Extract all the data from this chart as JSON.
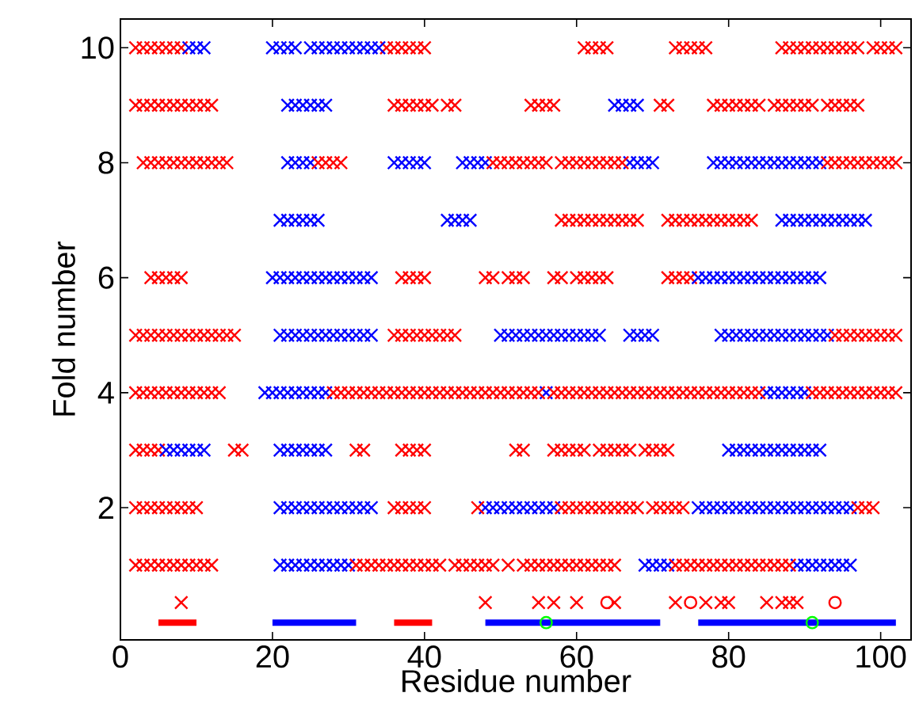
{
  "chart_data": {
    "type": "scatter",
    "xlabel": "Residue number",
    "ylabel": "Fold number",
    "xlim": [
      0,
      104
    ],
    "ylim": [
      -0.3,
      10.5
    ],
    "xticks": [
      0,
      20,
      40,
      60,
      80,
      100
    ],
    "yticks": [
      2,
      4,
      6,
      8,
      10
    ],
    "marker": "cross",
    "series": [
      {
        "color": "#ff0000",
        "x": [
          2,
          3,
          4,
          5,
          6,
          7,
          8,
          35,
          36,
          37,
          38,
          39,
          40,
          61,
          62,
          63,
          64,
          73,
          74,
          75,
          76,
          77,
          87,
          88,
          89,
          90,
          91,
          92,
          93,
          94,
          95,
          96,
          97,
          99,
          100,
          101,
          102
        ],
        "values": [
          10,
          10,
          10,
          10,
          10,
          10,
          10,
          10,
          10,
          10,
          10,
          10,
          10,
          10,
          10,
          10,
          10,
          10,
          10,
          10,
          10,
          10,
          10,
          10,
          10,
          10,
          10,
          10,
          10,
          10,
          10,
          10,
          10,
          10,
          10,
          10,
          10
        ]
      },
      {
        "color": "#0000ff",
        "x": [
          9,
          10,
          11,
          20,
          21,
          22,
          23,
          25,
          26,
          27,
          28,
          29,
          30,
          31,
          32,
          33,
          34
        ],
        "values": [
          10,
          10,
          10,
          10,
          10,
          10,
          10,
          10,
          10,
          10,
          10,
          10,
          10,
          10,
          10,
          10,
          10
        ]
      },
      {
        "color": "#ff0000",
        "x": [
          2,
          3,
          4,
          5,
          6,
          7,
          8,
          9,
          10,
          11,
          12,
          36,
          37,
          38,
          39,
          40,
          41,
          43,
          44,
          54,
          55,
          56,
          57,
          71,
          72,
          78,
          79,
          80,
          81,
          82,
          83,
          84,
          86,
          87,
          88,
          89,
          90,
          91,
          93,
          94,
          95,
          96,
          97
        ],
        "values": [
          9,
          9,
          9,
          9,
          9,
          9,
          9,
          9,
          9,
          9,
          9,
          9,
          9,
          9,
          9,
          9,
          9,
          9,
          9,
          9,
          9,
          9,
          9,
          9,
          9,
          9,
          9,
          9,
          9,
          9,
          9,
          9,
          9,
          9,
          9,
          9,
          9,
          9,
          9,
          9,
          9,
          9,
          9
        ]
      },
      {
        "color": "#0000ff",
        "x": [
          22,
          23,
          24,
          25,
          26,
          27,
          65,
          66,
          67,
          68
        ],
        "values": [
          9,
          9,
          9,
          9,
          9,
          9,
          9,
          9,
          9,
          9
        ]
      },
      {
        "color": "#0000ff",
        "x": [
          22,
          23,
          24,
          25,
          36,
          37,
          38,
          39,
          40,
          45,
          46,
          47,
          48,
          67,
          68,
          69,
          70,
          78,
          79,
          80,
          81,
          82,
          83,
          84,
          85,
          86,
          87,
          88,
          89,
          90,
          91,
          92
        ],
        "values": [
          8,
          8,
          8,
          8,
          8,
          8,
          8,
          8,
          8,
          8,
          8,
          8,
          8,
          8,
          8,
          8,
          8,
          8,
          8,
          8,
          8,
          8,
          8,
          8,
          8,
          8,
          8,
          8,
          8,
          8,
          8,
          8
        ]
      },
      {
        "color": "#ff0000",
        "x": [
          3,
          4,
          5,
          6,
          7,
          8,
          9,
          10,
          11,
          12,
          13,
          14,
          26,
          27,
          28,
          29,
          49,
          50,
          51,
          52,
          53,
          54,
          55,
          56,
          58,
          59,
          60,
          61,
          62,
          63,
          64,
          65,
          66,
          93,
          94,
          95,
          96,
          97,
          98,
          99,
          100,
          101,
          102
        ],
        "values": [
          8,
          8,
          8,
          8,
          8,
          8,
          8,
          8,
          8,
          8,
          8,
          8,
          8,
          8,
          8,
          8,
          8,
          8,
          8,
          8,
          8,
          8,
          8,
          8,
          8,
          8,
          8,
          8,
          8,
          8,
          8,
          8,
          8,
          8,
          8,
          8,
          8,
          8,
          8,
          8,
          8,
          8,
          8
        ]
      },
      {
        "color": "#ff0000",
        "x": [
          58,
          59,
          60,
          61,
          62,
          63,
          64,
          65,
          66,
          67,
          68,
          72,
          73,
          74,
          75,
          76,
          77,
          78,
          79,
          80,
          81,
          82,
          83
        ],
        "values": [
          7,
          7,
          7,
          7,
          7,
          7,
          7,
          7,
          7,
          7,
          7,
          7,
          7,
          7,
          7,
          7,
          7,
          7,
          7,
          7,
          7,
          7,
          7
        ]
      },
      {
        "color": "#0000ff",
        "x": [
          21,
          22,
          23,
          24,
          25,
          26,
          43,
          44,
          45,
          46,
          87,
          88,
          89,
          90,
          91,
          92,
          93,
          94,
          95,
          96,
          97,
          98
        ],
        "values": [
          7,
          7,
          7,
          7,
          7,
          7,
          7,
          7,
          7,
          7,
          7,
          7,
          7,
          7,
          7,
          7,
          7,
          7,
          7,
          7,
          7,
          7
        ]
      },
      {
        "color": "#ff0000",
        "x": [
          4,
          5,
          6,
          7,
          8,
          37,
          38,
          39,
          40,
          48,
          49,
          51,
          52,
          53,
          57,
          58,
          60,
          61,
          62,
          63,
          64,
          72,
          73,
          74,
          75
        ],
        "values": [
          6,
          6,
          6,
          6,
          6,
          6,
          6,
          6,
          6,
          6,
          6,
          6,
          6,
          6,
          6,
          6,
          6,
          6,
          6,
          6,
          6,
          6,
          6,
          6,
          6
        ]
      },
      {
        "color": "#0000ff",
        "x": [
          20,
          21,
          22,
          23,
          24,
          25,
          26,
          27,
          28,
          29,
          30,
          31,
          32,
          33,
          76,
          77,
          78,
          79,
          80,
          81,
          82,
          83,
          84,
          85,
          86,
          87,
          88,
          89,
          90,
          91,
          92
        ],
        "values": [
          6,
          6,
          6,
          6,
          6,
          6,
          6,
          6,
          6,
          6,
          6,
          6,
          6,
          6,
          6,
          6,
          6,
          6,
          6,
          6,
          6,
          6,
          6,
          6,
          6,
          6,
          6,
          6,
          6,
          6,
          6
        ]
      },
      {
        "color": "#0000ff",
        "x": [
          21,
          22,
          23,
          24,
          25,
          26,
          27,
          28,
          29,
          30,
          31,
          32,
          33,
          50,
          51,
          52,
          53,
          54,
          55,
          56,
          57,
          58,
          59,
          60,
          61,
          62,
          63,
          67,
          68,
          69,
          70,
          79,
          80,
          81,
          82,
          83,
          84,
          85,
          86,
          87,
          88,
          89,
          90,
          91,
          92,
          93
        ],
        "values": [
          5,
          5,
          5,
          5,
          5,
          5,
          5,
          5,
          5,
          5,
          5,
          5,
          5,
          5,
          5,
          5,
          5,
          5,
          5,
          5,
          5,
          5,
          5,
          5,
          5,
          5,
          5,
          5,
          5,
          5,
          5,
          5,
          5,
          5,
          5,
          5,
          5,
          5,
          5,
          5,
          5,
          5,
          5,
          5,
          5,
          5
        ]
      },
      {
        "color": "#ff0000",
        "x": [
          2,
          3,
          4,
          5,
          6,
          7,
          8,
          9,
          10,
          11,
          12,
          13,
          14,
          15,
          36,
          37,
          38,
          39,
          40,
          41,
          42,
          43,
          44,
          94,
          95,
          96,
          97,
          98,
          99,
          100,
          101,
          102
        ],
        "values": [
          5,
          5,
          5,
          5,
          5,
          5,
          5,
          5,
          5,
          5,
          5,
          5,
          5,
          5,
          5,
          5,
          5,
          5,
          5,
          5,
          5,
          5,
          5,
          5,
          5,
          5,
          5,
          5,
          5,
          5,
          5,
          5
        ]
      },
      {
        "color": "#0000ff",
        "x": [
          19,
          20,
          21,
          22,
          23,
          24,
          25,
          26,
          27,
          56,
          85,
          86,
          87,
          88,
          89,
          90
        ],
        "values": [
          4,
          4,
          4,
          4,
          4,
          4,
          4,
          4,
          4,
          4,
          4,
          4,
          4,
          4,
          4,
          4
        ]
      },
      {
        "color": "#ff0000",
        "x": [
          2,
          3,
          4,
          5,
          6,
          7,
          8,
          9,
          10,
          11,
          12,
          13,
          28,
          29,
          30,
          31,
          32,
          33,
          34,
          35,
          36,
          37,
          38,
          39,
          40,
          41,
          42,
          43,
          44,
          45,
          46,
          47,
          48,
          49,
          50,
          51,
          52,
          53,
          54,
          55,
          57,
          58,
          59,
          60,
          61,
          62,
          63,
          64,
          65,
          66,
          67,
          68,
          69,
          70,
          71,
          72,
          73,
          74,
          75,
          76,
          77,
          78,
          79,
          80,
          81,
          82,
          83,
          84,
          91,
          92,
          93,
          94,
          95,
          96,
          97,
          98,
          99,
          100,
          101,
          102
        ],
        "values": [
          4,
          4,
          4,
          4,
          4,
          4,
          4,
          4,
          4,
          4,
          4,
          4,
          4,
          4,
          4,
          4,
          4,
          4,
          4,
          4,
          4,
          4,
          4,
          4,
          4,
          4,
          4,
          4,
          4,
          4,
          4,
          4,
          4,
          4,
          4,
          4,
          4,
          4,
          4,
          4,
          4,
          4,
          4,
          4,
          4,
          4,
          4,
          4,
          4,
          4,
          4,
          4,
          4,
          4,
          4,
          4,
          4,
          4,
          4,
          4,
          4,
          4,
          4,
          4,
          4,
          4,
          4,
          4,
          4,
          4,
          4,
          4,
          4,
          4,
          4,
          4,
          4,
          4,
          4,
          4
        ]
      },
      {
        "color": "#ff0000",
        "x": [
          2,
          3,
          4,
          5,
          15,
          16,
          31,
          32,
          37,
          38,
          39,
          40,
          52,
          53,
          57,
          58,
          59,
          60,
          61,
          63,
          64,
          65,
          66,
          67,
          69,
          70,
          71,
          72
        ],
        "values": [
          3,
          3,
          3,
          3,
          3,
          3,
          3,
          3,
          3,
          3,
          3,
          3,
          3,
          3,
          3,
          3,
          3,
          3,
          3,
          3,
          3,
          3,
          3,
          3,
          3,
          3,
          3,
          3
        ]
      },
      {
        "color": "#0000ff",
        "x": [
          6,
          7,
          8,
          9,
          10,
          11,
          21,
          22,
          23,
          24,
          25,
          26,
          27,
          80,
          81,
          82,
          83,
          84,
          85,
          86,
          87,
          88,
          89,
          90,
          91,
          92
        ],
        "values": [
          3,
          3,
          3,
          3,
          3,
          3,
          3,
          3,
          3,
          3,
          3,
          3,
          3,
          3,
          3,
          3,
          3,
          3,
          3,
          3,
          3,
          3,
          3,
          3,
          3,
          3
        ]
      },
      {
        "color": "#0000ff",
        "x": [
          21,
          22,
          23,
          24,
          25,
          26,
          27,
          28,
          29,
          30,
          31,
          32,
          33,
          48,
          49,
          50,
          51,
          52,
          53,
          54,
          55,
          56,
          57,
          76,
          77,
          78,
          79,
          80,
          81,
          82,
          83,
          84,
          85,
          86,
          87,
          88,
          89,
          90,
          91,
          92,
          93,
          94,
          95,
          96
        ],
        "values": [
          2,
          2,
          2,
          2,
          2,
          2,
          2,
          2,
          2,
          2,
          2,
          2,
          2,
          2,
          2,
          2,
          2,
          2,
          2,
          2,
          2,
          2,
          2,
          2,
          2,
          2,
          2,
          2,
          2,
          2,
          2,
          2,
          2,
          2,
          2,
          2,
          2,
          2,
          2,
          2,
          2,
          2,
          2,
          2
        ]
      },
      {
        "color": "#ff0000",
        "x": [
          2,
          3,
          4,
          5,
          6,
          7,
          8,
          9,
          10,
          36,
          37,
          38,
          39,
          40,
          47,
          58,
          59,
          60,
          61,
          62,
          63,
          64,
          65,
          66,
          67,
          68,
          70,
          71,
          72,
          73,
          74,
          97,
          98,
          99
        ],
        "values": [
          2,
          2,
          2,
          2,
          2,
          2,
          2,
          2,
          2,
          2,
          2,
          2,
          2,
          2,
          2,
          2,
          2,
          2,
          2,
          2,
          2,
          2,
          2,
          2,
          2,
          2,
          2,
          2,
          2,
          2,
          2,
          2,
          2,
          2
        ]
      },
      {
        "color": "#0000ff",
        "x": [
          21,
          22,
          23,
          24,
          25,
          26,
          27,
          28,
          29,
          30,
          69,
          70,
          71,
          72,
          89,
          90,
          91,
          92,
          93,
          94,
          95,
          96
        ],
        "values": [
          1,
          1,
          1,
          1,
          1,
          1,
          1,
          1,
          1,
          1,
          1,
          1,
          1,
          1,
          1,
          1,
          1,
          1,
          1,
          1,
          1,
          1
        ]
      },
      {
        "color": "#ff0000",
        "x": [
          2,
          3,
          4,
          5,
          6,
          7,
          8,
          9,
          10,
          11,
          12,
          31,
          32,
          33,
          34,
          35,
          36,
          37,
          38,
          39,
          40,
          41,
          42,
          44,
          45,
          46,
          47,
          48,
          49,
          51,
          53,
          54,
          55,
          56,
          57,
          58,
          59,
          60,
          61,
          62,
          63,
          64,
          65,
          73,
          74,
          75,
          76,
          77,
          78,
          79,
          80,
          81,
          82,
          83,
          84,
          85,
          86,
          87,
          88
        ],
        "values": [
          1,
          1,
          1,
          1,
          1,
          1,
          1,
          1,
          1,
          1,
          1,
          1,
          1,
          1,
          1,
          1,
          1,
          1,
          1,
          1,
          1,
          1,
          1,
          1,
          1,
          1,
          1,
          1,
          1,
          1,
          1,
          1,
          1,
          1,
          1,
          1,
          1,
          1,
          1,
          1,
          1,
          1,
          1,
          1,
          1,
          1,
          1,
          1,
          1,
          1,
          1,
          1,
          1,
          1,
          1,
          1,
          1,
          1,
          1
        ]
      },
      {
        "color": "#ff0000",
        "x": [
          8,
          48,
          55,
          57,
          60,
          65,
          73,
          77,
          79,
          80,
          85,
          87,
          88,
          89
        ],
        "values": [
          0.35,
          0.35,
          0.35,
          0.35,
          0.35,
          0.35,
          0.35,
          0.35,
          0.35,
          0.35,
          0.35,
          0.35,
          0.35,
          0.35
        ]
      },
      {
        "color": "#ff0000",
        "marker": "circle",
        "x": [
          64,
          75,
          94
        ],
        "values": [
          0.35,
          0.35,
          0.35
        ]
      },
      {
        "color": "#ff0000",
        "type": "line",
        "marker": "none",
        "x": [
          5,
          10,
          20,
          36,
          41
        ],
        "values": [
          0,
          0,
          null,
          0,
          0
        ]
      },
      {
        "color": "#0000ff",
        "type": "line",
        "marker": "none",
        "x": [
          20,
          31,
          40,
          48,
          71,
          73,
          76,
          102
        ],
        "values": [
          0,
          0,
          null,
          0,
          0,
          null,
          0,
          0
        ]
      },
      {
        "color": "#00ff00",
        "marker": "circle",
        "x": [
          56,
          91
        ],
        "values": [
          0,
          0
        ]
      }
    ]
  }
}
